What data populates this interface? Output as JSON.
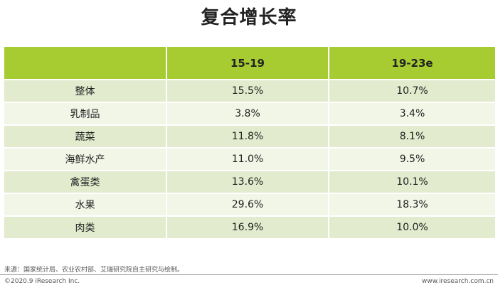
{
  "title": "复合增长率",
  "table": {
    "headers": [
      "",
      "15-19",
      "19-23e"
    ],
    "rows": [
      {
        "label": "整体",
        "a": "15.5%",
        "b": "10.7%"
      },
      {
        "label": "乳制品",
        "a": "3.8%",
        "b": "3.4%"
      },
      {
        "label": "蔬菜",
        "a": "11.8%",
        "b": "8.1%"
      },
      {
        "label": "海鲜水产",
        "a": "11.0%",
        "b": "9.5%"
      },
      {
        "label": "禽蛋类",
        "a": "13.6%",
        "b": "10.1%"
      },
      {
        "label": "水果",
        "a": "29.6%",
        "b": "18.3%"
      },
      {
        "label": "肉类",
        "a": "16.9%",
        "b": "10.0%"
      }
    ]
  },
  "footer": {
    "source": "来源：国家统计局、农业农村部、艾瑞研究院自主研究与绘制。",
    "copyright": "©2020.9 iResearch Inc.",
    "site": "www.iresearch.com.cn"
  },
  "colors": {
    "header_bg": "#a7cc31",
    "row_odd": "#e2ebcd",
    "row_even": "#f1f6e7"
  }
}
